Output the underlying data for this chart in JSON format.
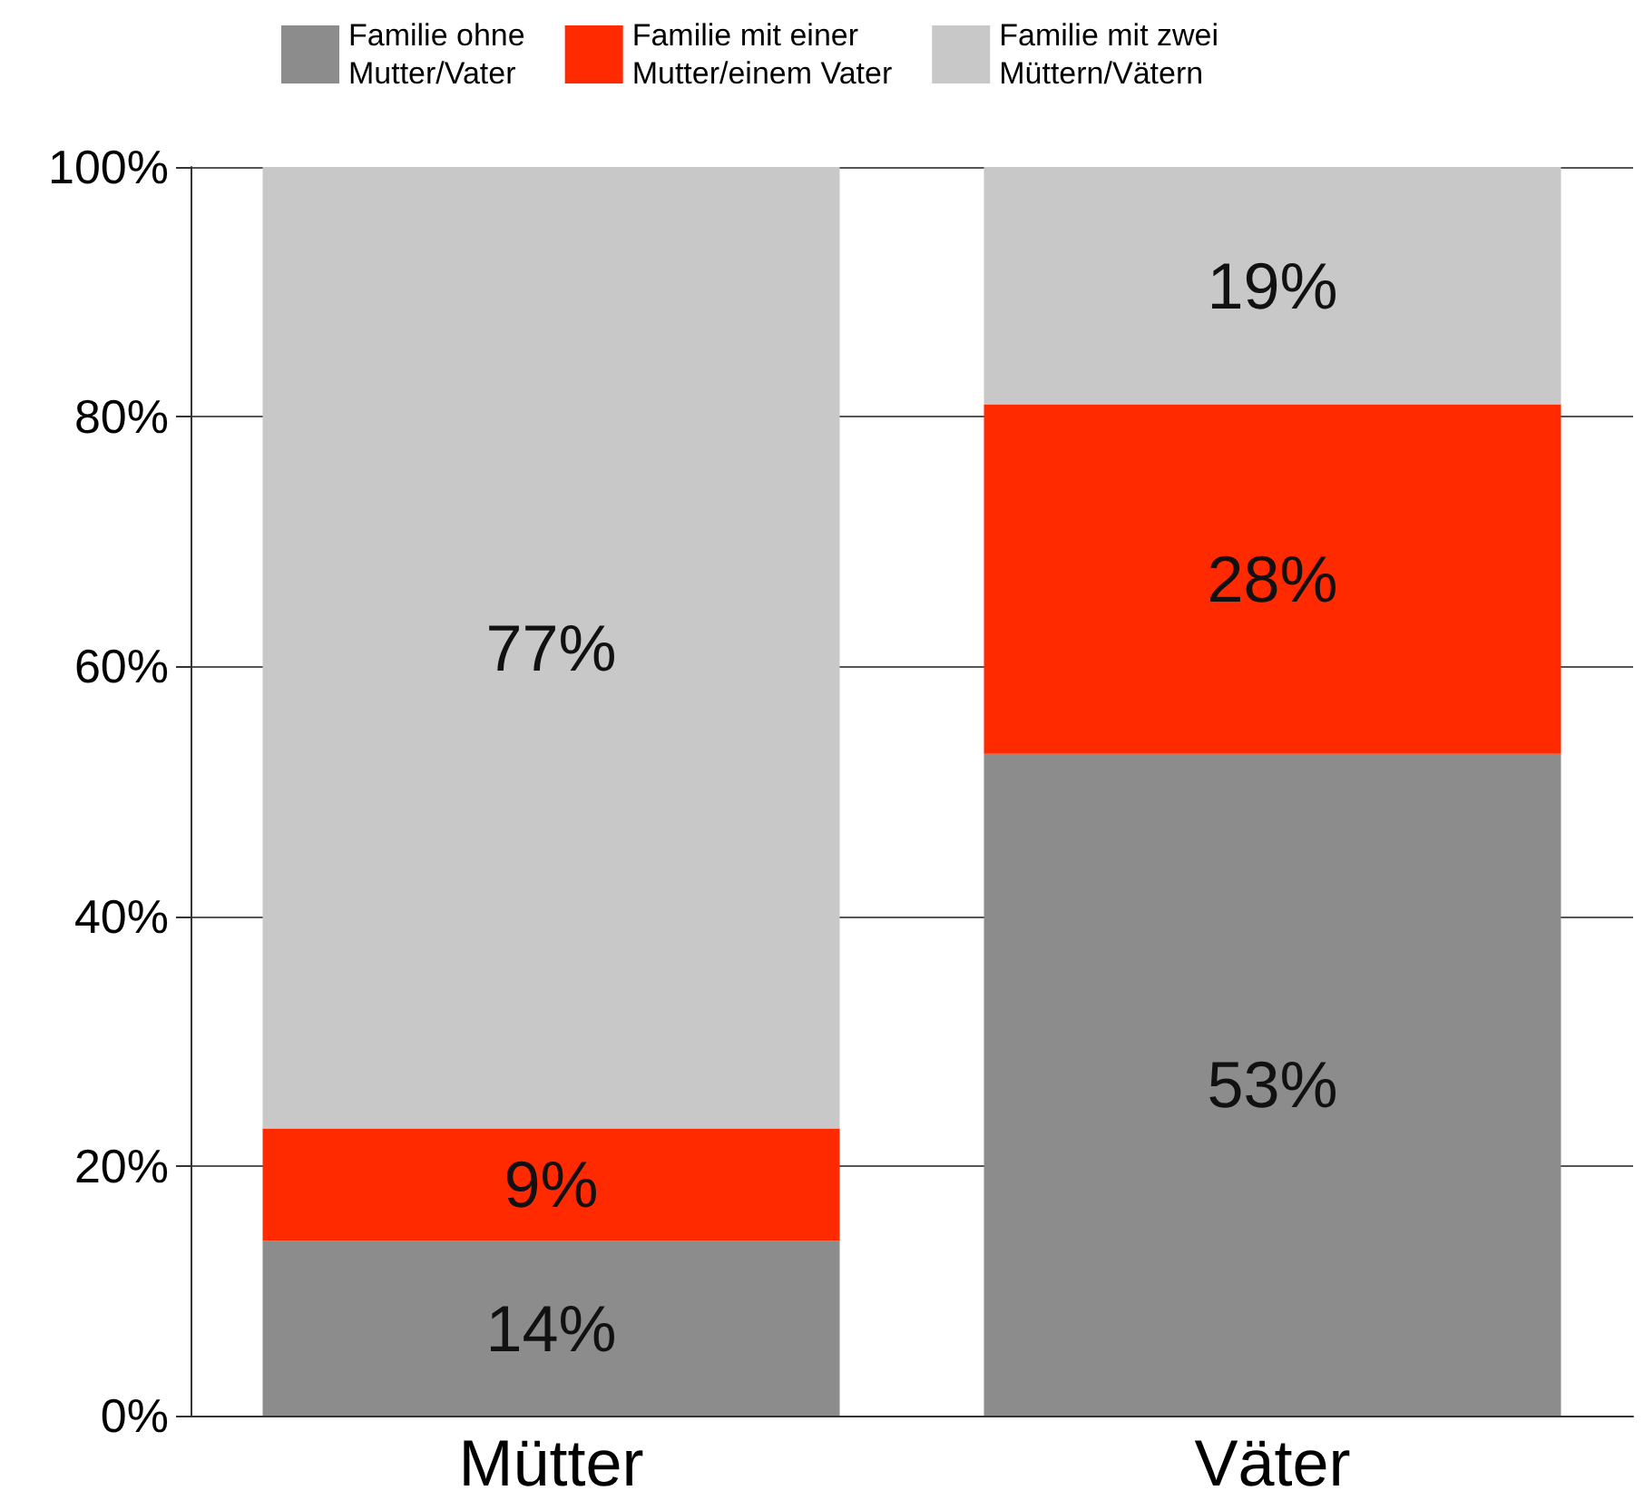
{
  "chart_data": {
    "type": "bar",
    "stacked": true,
    "categories": [
      "Mütter",
      "Väter"
    ],
    "series": [
      {
        "name": "Familie ohne\nMutter/Vater",
        "color": "#8c8c8c",
        "values": [
          14,
          53
        ],
        "value_labels": [
          "14%",
          "53%"
        ]
      },
      {
        "name": "Familie mit einer\nMutter/einem Vater",
        "color": "#ff2a00",
        "values": [
          9,
          28
        ],
        "value_labels": [
          "9%",
          "28%"
        ]
      },
      {
        "name": "Familie mit zwei\nMüttern/Vätern",
        "color": "#c8c8c8",
        "values": [
          77,
          19
        ],
        "value_labels": [
          "77%",
          "19%"
        ]
      }
    ],
    "ylim": [
      0,
      100
    ],
    "yticks": [
      {
        "value": 0,
        "label": "0%"
      },
      {
        "value": 20,
        "label": "20%"
      },
      {
        "value": 40,
        "label": "40%"
      },
      {
        "value": 60,
        "label": "60%"
      },
      {
        "value": 80,
        "label": "80%"
      },
      {
        "value": 100,
        "label": "100%"
      }
    ],
    "grid": "y",
    "legend": "top"
  }
}
